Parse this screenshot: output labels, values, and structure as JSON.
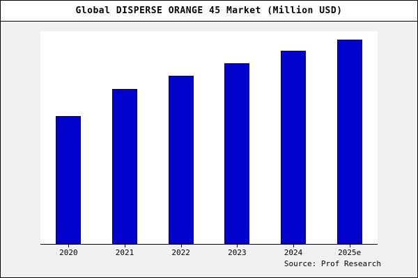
{
  "chart_data": {
    "type": "bar",
    "title": "Global DISPERSE ORANGE 45 Market (Million USD)",
    "categories": [
      "2020",
      "2021",
      "2022",
      "2023",
      "2024",
      "2025e"
    ],
    "values": [
      60,
      73,
      79,
      85,
      91,
      96
    ],
    "xlabel": "",
    "ylabel": "",
    "ylim": [
      0,
      100
    ],
    "grid": false,
    "legend": "none",
    "bar_color": "#0202CC",
    "bar_border_color": "#000066"
  },
  "source": "Source: Prof Research"
}
